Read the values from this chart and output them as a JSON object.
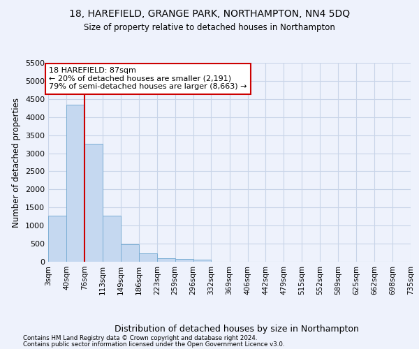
{
  "title1": "18, HAREFIELD, GRANGE PARK, NORTHAMPTON, NN4 5DQ",
  "title2": "Size of property relative to detached houses in Northampton",
  "xlabel": "Distribution of detached houses by size in Northampton",
  "ylabel": "Number of detached properties",
  "footnote1": "Contains HM Land Registry data © Crown copyright and database right 2024.",
  "footnote2": "Contains public sector information licensed under the Open Government Licence v3.0.",
  "bin_edges": [
    3,
    40,
    76,
    113,
    149,
    186,
    223,
    259,
    296,
    332,
    369,
    406,
    442,
    479,
    515,
    552,
    589,
    625,
    662,
    698,
    735
  ],
  "bar_values": [
    1270,
    4350,
    3270,
    1270,
    480,
    240,
    90,
    75,
    50,
    0,
    0,
    0,
    0,
    0,
    0,
    0,
    0,
    0,
    0,
    0
  ],
  "bar_color": "#c5d8f0",
  "bar_edge_color": "#7aadd4",
  "grid_color": "#c8d4e8",
  "vline_x": 76,
  "vline_color": "#cc0000",
  "annotation_line1": "18 HAREFIELD: 87sqm",
  "annotation_line2": "← 20% of detached houses are smaller (2,191)",
  "annotation_line3": "79% of semi-detached houses are larger (8,663) →",
  "annotation_box_facecolor": "#ffffff",
  "annotation_box_edgecolor": "#cc0000",
  "ylim": [
    0,
    5500
  ],
  "yticks": [
    0,
    500,
    1000,
    1500,
    2000,
    2500,
    3000,
    3500,
    4000,
    4500,
    5000,
    5500
  ],
  "plot_bg": "#eef2fc",
  "fig_bg": "#eef2fc"
}
